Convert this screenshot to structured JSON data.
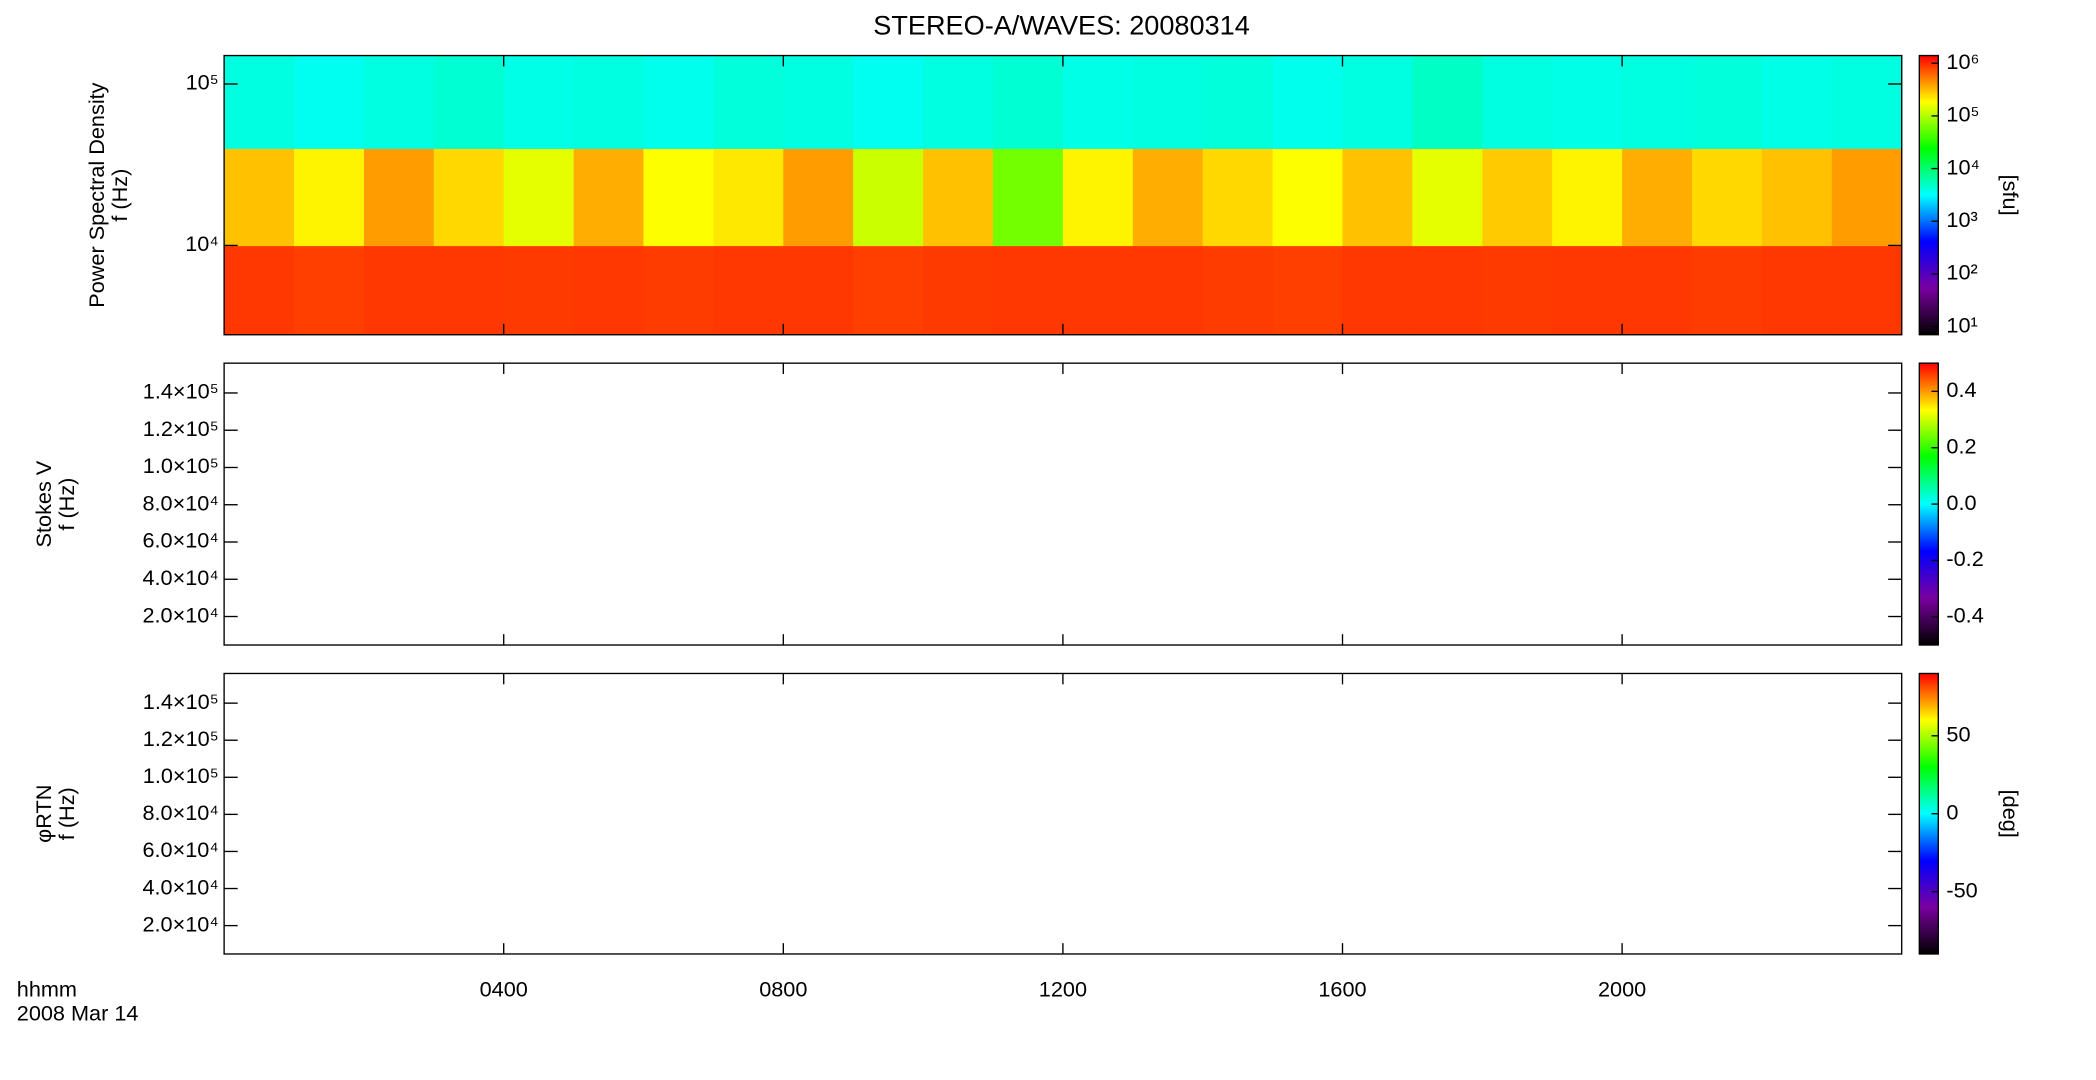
{
  "chart_data": [
    {
      "type": "heatmap",
      "title": "STEREO-A/WAVES: 20080314",
      "ylabel": "Power Spectral Density",
      "ylabel2": "f (Hz)",
      "xlim": [
        0,
        24
      ],
      "ylog": true,
      "ylim": [
        2800,
        150000
      ],
      "yticks": [
        {
          "value": 10000,
          "label": "10⁴"
        },
        {
          "value": 100000,
          "label": "10⁵"
        }
      ],
      "x_bins": [
        0,
        1,
        2,
        3,
        4,
        5,
        6,
        7,
        8,
        9,
        10,
        11,
        12,
        13,
        14,
        15,
        16,
        17,
        18,
        19,
        20,
        21,
        22,
        23,
        24
      ],
      "y_bins": [
        2800,
        10000,
        40000,
        150000
      ],
      "z": [
        [
          900000,
          850000,
          900000,
          900000,
          880000,
          900000,
          870000,
          900000,
          900000,
          850000,
          880000,
          900000,
          900000,
          900000,
          870000,
          850000,
          900000,
          900000,
          880000,
          900000,
          900000,
          870000,
          900000,
          900000
        ],
        [
          300000,
          200000,
          400000,
          250000,
          150000,
          350000,
          180000,
          220000,
          400000,
          120000,
          300000,
          60000,
          200000,
          350000,
          250000,
          180000,
          300000,
          150000,
          280000,
          200000,
          350000,
          250000,
          300000,
          400000
        ],
        [
          4000,
          3500,
          4000,
          4500,
          3800,
          4000,
          3600,
          4200,
          4000,
          3500,
          4000,
          4500,
          3800,
          4000,
          4200,
          3600,
          4000,
          5000,
          4000,
          3800,
          4000,
          4200,
          3800,
          4000
        ]
      ],
      "zlog": true,
      "zlim": [
        7,
        1400000
      ],
      "zticks": [
        {
          "value": 10,
          "label": "10¹"
        },
        {
          "value": 100,
          "label": "10²"
        },
        {
          "value": 1000,
          "label": "10³"
        },
        {
          "value": 10000,
          "label": "10⁴"
        },
        {
          "value": 100000,
          "label": "10⁵"
        },
        {
          "value": 1000000,
          "label": "10⁶"
        }
      ],
      "zlabel": "[sfu]",
      "colormap": [
        "#000000",
        "#7a00a0",
        "#0000ff",
        "#00ffff",
        "#00ff00",
        "#ffff00",
        "#ff0000"
      ]
    },
    {
      "type": "heatmap",
      "ylabel": "Stokes V",
      "ylabel2": "f (Hz)",
      "xlim": [
        0,
        24
      ],
      "ylim": [
        4700,
        156000
      ],
      "yticks": [
        {
          "value": 20000,
          "label": "2.0×10⁴"
        },
        {
          "value": 40000,
          "label": "4.0×10⁴"
        },
        {
          "value": 60000,
          "label": "6.0×10⁴"
        },
        {
          "value": 80000,
          "label": "8.0×10⁴"
        },
        {
          "value": 100000,
          "label": "1.0×10⁵"
        },
        {
          "value": 120000,
          "label": "1.2×10⁵"
        },
        {
          "value": 140000,
          "label": "1.4×10⁵"
        }
      ],
      "zlim": [
        -0.5,
        0.5
      ],
      "zticks": [
        -0.4,
        -0.2,
        {
          "value": 0,
          "label": "0.0"
        },
        0.2,
        0.4
      ],
      "colormap": [
        "#000000",
        "#7a00a0",
        "#0000ff",
        "#00ffff",
        "#00ff00",
        "#ffff00",
        "#ff0000"
      ]
    },
    {
      "type": "heatmap",
      "ylabel": "φRTN",
      "ylabel2": "f (Hz)",
      "xlim": [
        0,
        24
      ],
      "ylim": [
        4700,
        156000
      ],
      "yticks": [
        {
          "value": 20000,
          "label": "2.0×10⁴"
        },
        {
          "value": 40000,
          "label": "4.0×10⁴"
        },
        {
          "value": 60000,
          "label": "6.0×10⁴"
        },
        {
          "value": 80000,
          "label": "8.0×10⁴"
        },
        {
          "value": 100000,
          "label": "1.0×10⁵"
        },
        {
          "value": 120000,
          "label": "1.2×10⁵"
        },
        {
          "value": 140000,
          "label": "1.4×10⁵"
        }
      ],
      "zlim": [
        -90,
        90
      ],
      "zticks": [
        -50,
        0,
        50
      ],
      "zlabel": "[deg]",
      "colormap": [
        "#000000",
        "#7a00a0",
        "#0000ff",
        "#00ffff",
        "#00ff00",
        "#ffff00",
        "#ff0000"
      ],
      "xticks": [
        {
          "value": 4,
          "label": "0400"
        },
        {
          "value": 8,
          "label": "0800"
        },
        {
          "value": 12,
          "label": "1200"
        },
        {
          "value": 16,
          "label": "1600"
        },
        {
          "value": 20,
          "label": "2000"
        }
      ],
      "xlabel": "hhmm",
      "date": "2008 Mar 14"
    }
  ]
}
